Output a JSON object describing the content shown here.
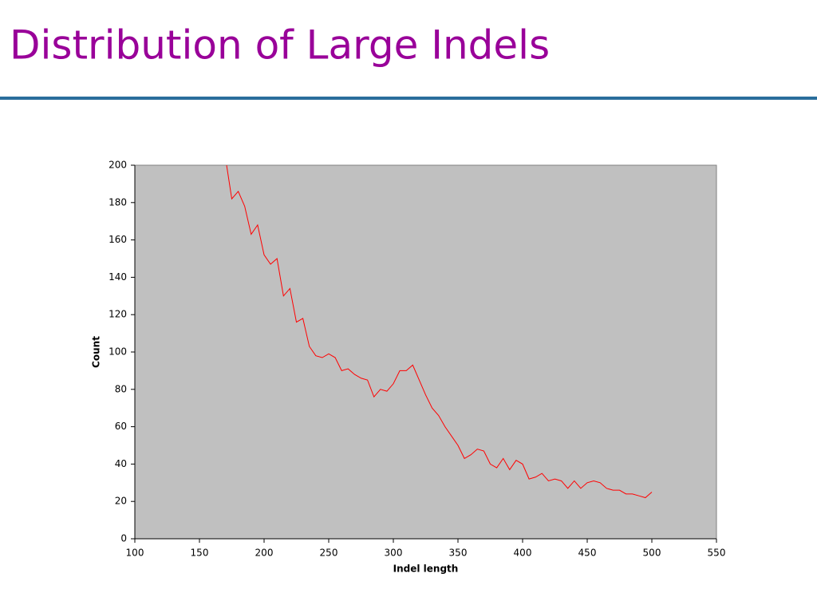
{
  "title": "Distribution of Large Indels",
  "chart_data": {
    "type": "line",
    "xlabel": "Indel length",
    "ylabel": "Count",
    "x": [
      171,
      175,
      180,
      185,
      190,
      195,
      200,
      205,
      210,
      215,
      220,
      225,
      230,
      235,
      240,
      245,
      250,
      255,
      260,
      265,
      270,
      275,
      280,
      285,
      290,
      295,
      300,
      305,
      310,
      315,
      320,
      325,
      330,
      335,
      340,
      345,
      350,
      355,
      360,
      365,
      370,
      375,
      380,
      385,
      390,
      395,
      400,
      405,
      410,
      415,
      420,
      425,
      430,
      435,
      440,
      445,
      450,
      455,
      460,
      465,
      470,
      475,
      480,
      485,
      490,
      495,
      500
    ],
    "series": [
      {
        "name": "Count",
        "color": "#ff0000",
        "values": [
          200,
          182,
          186,
          178,
          163,
          168,
          152,
          147,
          150,
          130,
          134,
          116,
          118,
          103,
          98,
          97,
          99,
          97,
          90,
          91,
          88,
          86,
          85,
          76,
          80,
          79,
          83,
          90,
          90,
          93,
          85,
          77,
          70,
          66,
          60,
          55,
          50,
          43,
          45,
          48,
          47,
          40,
          38,
          43,
          37,
          42,
          40,
          32,
          33,
          35,
          31,
          32,
          31,
          27,
          31,
          27,
          30,
          31,
          30,
          27,
          26,
          26,
          24,
          24,
          23,
          22,
          25
        ]
      }
    ],
    "xlim": [
      100,
      550
    ],
    "xticks": [
      100,
      150,
      200,
      250,
      300,
      350,
      400,
      450,
      500,
      550
    ],
    "ylim": [
      0,
      200
    ],
    "yticks": [
      0,
      20,
      40,
      60,
      80,
      100,
      120,
      140,
      160,
      180,
      200
    ],
    "plot_background": "#c0c0c0"
  }
}
